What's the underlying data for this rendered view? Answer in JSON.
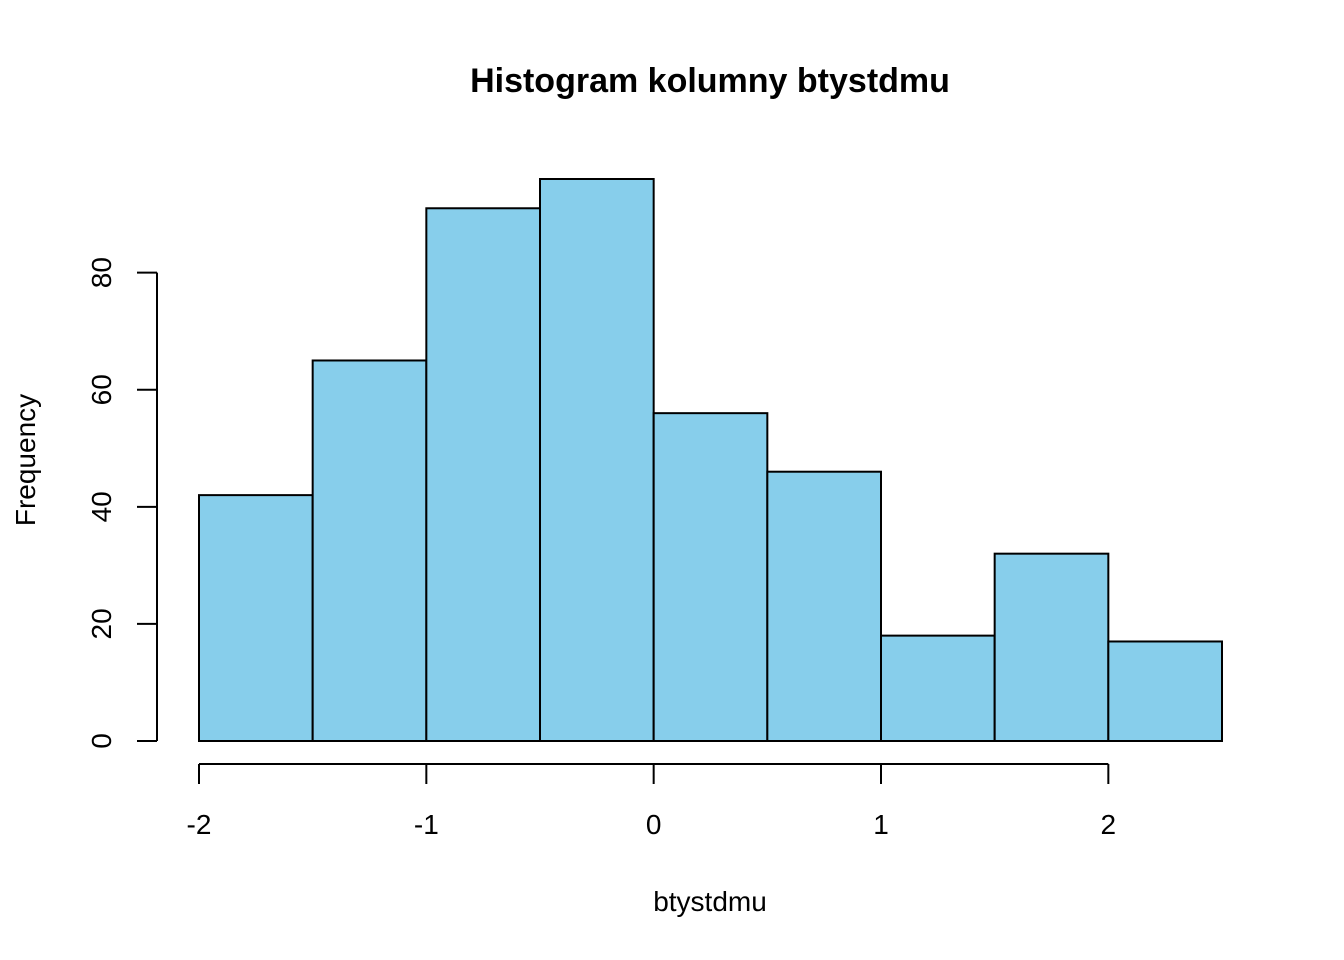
{
  "chart_data": {
    "type": "bar",
    "title": "Histogram kolumny btystdmu",
    "xlabel": "btystdmu",
    "ylabel": "Frequency",
    "bin_edges": [
      -2.0,
      -1.5,
      -1.0,
      -0.5,
      0.0,
      0.5,
      1.0,
      1.5,
      2.0,
      2.5
    ],
    "values": [
      42,
      65,
      91,
      96,
      56,
      46,
      18,
      32,
      17
    ],
    "x_ticks": [
      -2,
      -1,
      0,
      1,
      2
    ],
    "y_ticks": [
      0,
      20,
      40,
      60,
      80
    ],
    "xlim": [
      -2.0,
      2.5
    ],
    "ylim": [
      0,
      96
    ],
    "grid": false,
    "bar_color": "#87CEEB",
    "edge_color": "#000000"
  }
}
